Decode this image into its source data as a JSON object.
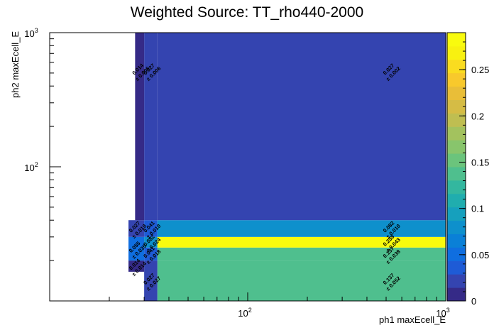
{
  "chart_data": {
    "type": "heatmap",
    "title": "Weighted Source: TT_rho440-2000",
    "xlabel": "ph1 maxEcell_E",
    "ylabel": "ph2 maxEcell_E",
    "x_scale": "log",
    "y_scale": "log",
    "xlim": [
      10,
      1000
    ],
    "ylim": [
      10,
      1000
    ],
    "x_tick_labels": [
      {
        "value": 100,
        "base": "10",
        "exp": "2"
      },
      {
        "value": 1000,
        "base": "10",
        "exp": "3"
      }
    ],
    "y_tick_labels": [
      {
        "value": 100,
        "base": "10",
        "exp": "2"
      },
      {
        "value": 1000,
        "base": "10",
        "exp": "3"
      }
    ],
    "colorbar": {
      "min": 0,
      "max": 0.29,
      "ticks": [
        {
          "value": 0,
          "label": "0"
        },
        {
          "value": 0.05,
          "label": "0.05"
        },
        {
          "value": 0.1,
          "label": "0.1"
        },
        {
          "value": 0.15,
          "label": "0.15"
        },
        {
          "value": 0.2,
          "label": "0.2"
        },
        {
          "value": 0.25,
          "label": "0.25"
        }
      ],
      "palette": [
        "#352a87",
        "#3444b0",
        "#1e5bd6",
        "#0f6ee0",
        "#0a80d7",
        "#0e90cc",
        "#16a0bd",
        "#20adae",
        "#33b79f",
        "#4fbf8e",
        "#6bc47c",
        "#88c56c",
        "#a3c25e",
        "#bfbe51",
        "#d5bc45",
        "#e9be38",
        "#f8c92c",
        "#fadc20",
        "#f8f110",
        "#f9fb0e"
      ]
    },
    "cells": [
      {
        "x0": 30,
        "x1": 35,
        "y0": 10,
        "y1": 20,
        "value": 0.027,
        "label": "0.027",
        "error": "± 0.027"
      },
      {
        "x0": 35,
        "x1": 1000,
        "y0": 10,
        "y1": 20,
        "value": 0.137,
        "label": "0.137",
        "error": "± 0.052"
      },
      {
        "x0": 25,
        "x1": 30,
        "y0": 16.5,
        "y1": 20,
        "value": 0.014,
        "label": "0.014",
        "error": "± 0.014"
      },
      {
        "x0": 30,
        "x1": 35,
        "y0": 20,
        "y1": 25,
        "value": 0.041,
        "label": "0.041",
        "error": "± 0.018"
      },
      {
        "x0": 35,
        "x1": 1000,
        "y0": 20,
        "y1": 25,
        "value": 0.137,
        "label": "0.137",
        "error": "± 0.038"
      },
      {
        "x0": 25,
        "x1": 30,
        "y0": 20,
        "y1": 30,
        "value": 0.055,
        "label": "0.055",
        "error": "± 0.035"
      },
      {
        "x0": 30,
        "x1": 35,
        "y0": 25,
        "y1": 30,
        "value": 0.082,
        "label": "0.082",
        "error": "± 0.024"
      },
      {
        "x0": 35,
        "x1": 1000,
        "y0": 25,
        "y1": 30,
        "value": 0.288,
        "label": "0.288",
        "error": "± 0.043"
      },
      {
        "x0": 25,
        "x1": 30,
        "y0": 30,
        "y1": 40,
        "value": 0.027,
        "label": "0.027",
        "error": "± 0.019"
      },
      {
        "x0": 30,
        "x1": 35,
        "y0": 30,
        "y1": 40,
        "value": 0.041,
        "label": "0.041",
        "error": "± 0.010"
      },
      {
        "x0": 35,
        "x1": 1000,
        "y0": 30,
        "y1": 40,
        "value": 0.082,
        "label": "0.082",
        "error": "± 0.010"
      },
      {
        "x0": 27,
        "x1": 30,
        "y0": 40,
        "y1": 1000,
        "value": 0.014,
        "label": "0.014",
        "error": "± 0.006"
      },
      {
        "x0": 30,
        "x1": 35,
        "y0": 40,
        "y1": 1000,
        "value": 0.027,
        "label": "0.027",
        "error": "± 0.006"
      },
      {
        "x0": 35,
        "x1": 1000,
        "y0": 40,
        "y1": 1000,
        "value": 0.027,
        "label": "0.027",
        "error": "± 0.002"
      }
    ]
  }
}
